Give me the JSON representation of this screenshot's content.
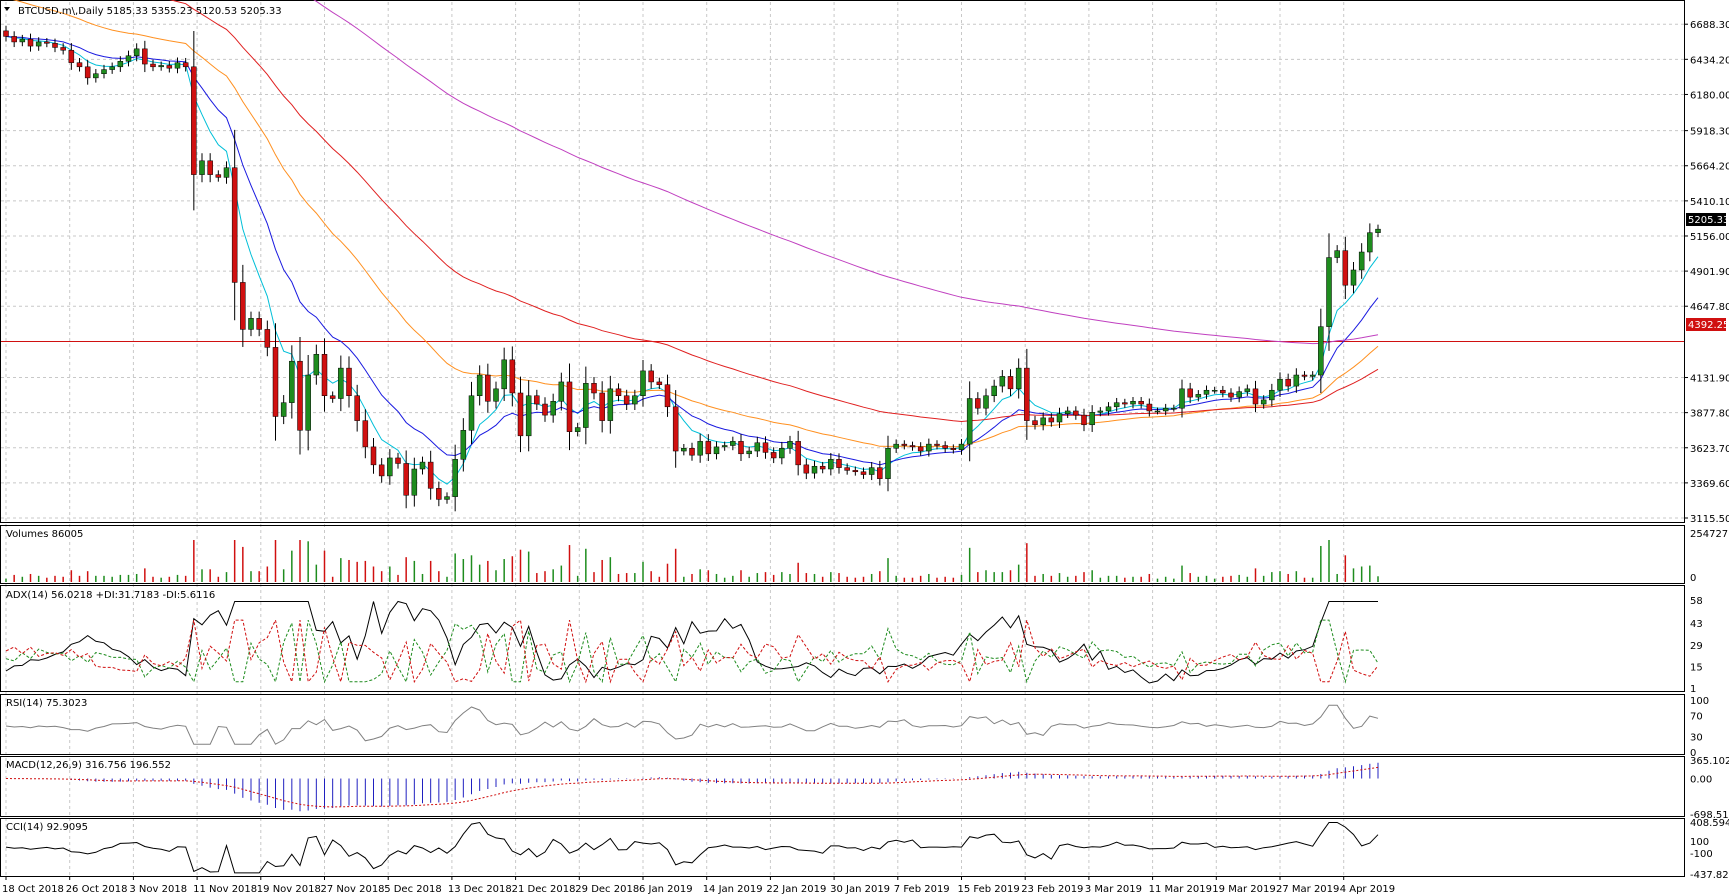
{
  "header": {
    "symbol_line": "BTCUSD.m\\,Daily  5185.33 5355.23 5120.53 5205.33"
  },
  "panes": {
    "price": {
      "ticks": [
        "6688.30",
        "6434.20",
        "6180.00",
        "5918.30",
        "5664.20",
        "5410.10",
        "5156.00",
        "4901.90",
        "4647.80",
        "4131.90",
        "3877.80",
        "3623.70",
        "3369.60",
        "3115.50"
      ],
      "current_price_label": "5205.33",
      "hline_label": "4392.25"
    },
    "volume": {
      "label": "Volumes 86005",
      "ticks": [
        "254727",
        "0"
      ]
    },
    "adx": {
      "label": "ADX(14) 56.0218 +DI:31.7183 -DI:5.6116",
      "ticks": [
        "58",
        "43",
        "29",
        "15",
        "1"
      ]
    },
    "rsi": {
      "label": "RSI(14) 75.3023",
      "ticks": [
        "100",
        "70",
        "30",
        "0"
      ]
    },
    "macd": {
      "label": "MACD(12,26,9) 316.756 196.552",
      "ticks": [
        "365.102",
        "0.00",
        "-698.51"
      ]
    },
    "cci": {
      "label": "CCI(14) 92.9095",
      "ticks": [
        "408.5941",
        "100",
        "-100",
        "-437.8226"
      ]
    }
  },
  "x_axis": {
    "labels": [
      "18 Oct 2018",
      "26 Oct 2018",
      "3 Nov 2018",
      "11 Nov 2018",
      "19 Nov 2018",
      "27 Nov 2018",
      "5 Dec 2018",
      "13 Dec 2018",
      "21 Dec 2018",
      "29 Dec 2018",
      "6 Jan 2019",
      "14 Jan 2019",
      "22 Jan 2019",
      "30 Jan 2019",
      "7 Feb 2019",
      "15 Feb 2019",
      "23 Feb 2019",
      "3 Mar 2019",
      "11 Mar 2019",
      "19 Mar 2019",
      "27 Mar 2019",
      "4 Apr 2019"
    ]
  },
  "chart_data": {
    "type": "candlestick",
    "symbol": "BTCUSD.m",
    "timeframe": "Daily",
    "last_ohlc": {
      "open": 5185.33,
      "high": 5355.23,
      "low": 5120.53,
      "close": 5205.33
    },
    "horizontal_line": 4392.25,
    "colors": {
      "up": "#1e8c1e",
      "down": "#d01010",
      "ma_fast": "#00bfd8",
      "ma_mid": "#1a1ae0",
      "ma_slow": "#ff9020",
      "ma_long": "#e02020",
      "ma_longest": "#c040c0",
      "hline": "#d01010"
    },
    "y_range": [
      3115.5,
      6820
    ],
    "closes": [
      6600,
      6560,
      6580,
      6530,
      6560,
      6550,
      6520,
      6500,
      6410,
      6380,
      6300,
      6330,
      6360,
      6380,
      6420,
      6460,
      6510,
      6400,
      6380,
      6390,
      6370,
      6410,
      6380,
      5600,
      5700,
      5600,
      5580,
      5650,
      4820,
      4480,
      4560,
      4480,
      4350,
      3850,
      3950,
      4250,
      3750,
      4150,
      4300,
      4000,
      3980,
      4200,
      4000,
      3820,
      3630,
      3500,
      3420,
      3550,
      3510,
      3280,
      3470,
      3520,
      3330,
      3250,
      3270,
      3540,
      3750,
      4000,
      4150,
      3960,
      4050,
      4260,
      4020,
      3710,
      4000,
      3940,
      3860,
      3960,
      4100,
      3740,
      3770,
      4090,
      4020,
      3820,
      4050,
      4000,
      3940,
      4000,
      4180,
      4100,
      4080,
      3920,
      3600,
      3620,
      3570,
      3670,
      3580,
      3630,
      3640,
      3670,
      3580,
      3600,
      3660,
      3590,
      3550,
      3620,
      3670,
      3500,
      3440,
      3490,
      3470,
      3540,
      3480,
      3460,
      3450,
      3430,
      3480,
      3400,
      3620,
      3650,
      3640,
      3630,
      3600,
      3650,
      3640,
      3620,
      3610,
      3650,
      3980,
      3910,
      4000,
      4070,
      4140,
      4050,
      4200,
      3820,
      3790,
      3840,
      3810,
      3870,
      3890,
      3860,
      3790,
      3880,
      3890,
      3920,
      3950,
      3940,
      3960,
      3940,
      3890,
      3890,
      3910,
      3910,
      4050,
      3990,
      4010,
      4040,
      4040,
      4020,
      3990,
      4030,
      4050,
      3940,
      3970,
      4040,
      4120,
      4070,
      4150,
      4140,
      4150,
      4500,
      5000,
      5050,
      4800,
      4910,
      5040,
      5180,
      5205.33
    ],
    "sma_fast": {
      "period_hint": 14
    },
    "volume": {
      "y_range": [
        0,
        254727
      ]
    },
    "adx": {
      "y_range": [
        1,
        58
      ],
      "last": {
        "adx": 56.0218,
        "plus_di": 31.7183,
        "minus_di": 5.6116
      }
    },
    "rsi": {
      "y_range": [
        0,
        100
      ],
      "last": 75.3023
    },
    "macd": {
      "y_range": [
        -698.51,
        365.102
      ],
      "last": {
        "macd": 316.756,
        "signal": 196.552
      }
    },
    "cci": {
      "y_range": [
        -437.8226,
        408.5941
      ],
      "last": 92.9095
    }
  }
}
